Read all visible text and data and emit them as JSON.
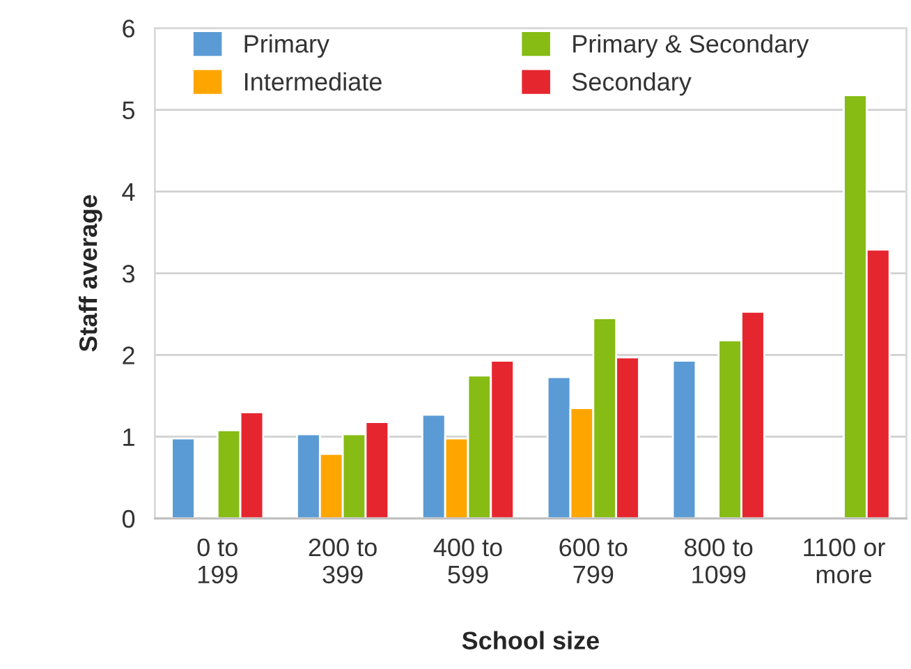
{
  "chart_data": {
    "type": "bar",
    "xlabel": "School size",
    "ylabel": "Staff average",
    "categories": [
      "0 to\n199",
      "200 to\n399",
      "400 to\n599",
      "600 to\n799",
      "800 to\n1099",
      "1100 or\nmore"
    ],
    "series": [
      {
        "name": "Primary",
        "color": "#5b9bd5",
        "values": [
          0.98,
          1.03,
          1.27,
          1.73,
          1.93,
          null
        ]
      },
      {
        "name": "Intermediate",
        "color": "#ffa500",
        "values": [
          null,
          0.79,
          0.98,
          1.35,
          null,
          null
        ]
      },
      {
        "name": "Primary & Secondary",
        "color": "#86bc14",
        "values": [
          1.08,
          1.03,
          1.75,
          2.45,
          2.18,
          5.18
        ]
      },
      {
        "name": "Secondary",
        "color": "#e6262e",
        "values": [
          1.3,
          1.18,
          1.93,
          1.97,
          2.53,
          3.29
        ]
      }
    ],
    "ylim": [
      0,
      6
    ],
    "yticks": [
      0,
      1,
      2,
      3,
      4,
      5,
      6
    ],
    "grid": "y",
    "legend": "top"
  }
}
